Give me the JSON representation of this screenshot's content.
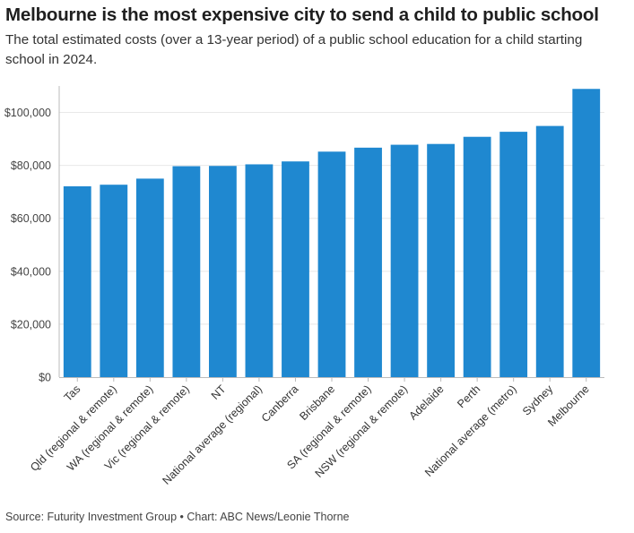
{
  "title": "Melbourne is the most expensive city to send a child to public school",
  "subtitle": "The total estimated costs (over a 13-year period) of a public school education for a child starting school in 2024.",
  "footer": "Source: Futurity Investment Group • Chart: ABC News/Leonie Thorne",
  "colors": {
    "bar": "#1f88d0",
    "grid": "#e8e8e8",
    "axis": "#bbbbbb"
  },
  "chart_data": {
    "type": "bar",
    "title": "Melbourne is the most expensive city to send a child to public school",
    "xlabel": "",
    "ylabel": "",
    "ylim": [
      0,
      110000
    ],
    "yticks": [
      0,
      20000,
      40000,
      60000,
      80000,
      100000
    ],
    "ytick_labels": [
      "$0",
      "$20,000",
      "$40,000",
      "$60,000",
      "$80,000",
      "$100,000"
    ],
    "grid": true,
    "categories": [
      "Tas",
      "Qld (regional & remote)",
      "WA (regional & remote)",
      "Vic (regional & remote)",
      "NT",
      "National average (regional)",
      "Canberra",
      "Brisbane",
      "SA (regional & remote)",
      "NSW (regional & remote)",
      "Adelaide",
      "Perth",
      "National average (metro)",
      "Sydney",
      "Melbourne"
    ],
    "values": [
      72100,
      72700,
      75000,
      79700,
      79800,
      80400,
      81500,
      85200,
      86700,
      87800,
      88100,
      90800,
      92700,
      94900,
      108900
    ]
  }
}
